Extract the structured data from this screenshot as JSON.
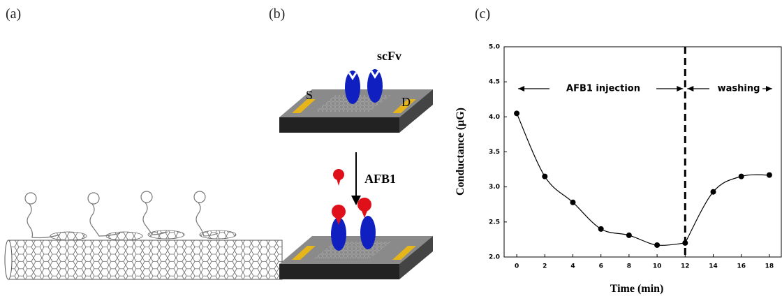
{
  "panels": {
    "a": {
      "label": "(a)"
    },
    "b": {
      "label": "(b)",
      "antibody": "scFv",
      "source": "S",
      "drain": "D",
      "analyte": "AFB1"
    },
    "c": {
      "label": "(c)"
    }
  },
  "chart_data": {
    "type": "scatter",
    "xlabel": "Time (min)",
    "ylabel": "Conductance (μG)",
    "x": [
      0,
      2,
      4,
      6,
      8,
      10,
      12,
      14,
      16,
      18
    ],
    "values": [
      4.05,
      3.15,
      2.78,
      2.4,
      2.31,
      2.17,
      2.2,
      2.93,
      3.15,
      3.17
    ],
    "color": "#000000",
    "xlim": [
      -0.9,
      18.9
    ],
    "xticks": [
      0,
      2,
      4,
      6,
      8,
      10,
      12,
      14,
      16,
      18
    ],
    "ylim": [
      2.0,
      5.0
    ],
    "yticks": [
      {
        "value": 2.0,
        "label": "2.0"
      },
      2.5,
      {
        "value": 3.0,
        "label": "3.0"
      },
      3.5,
      {
        "value": 4.0,
        "label": "4.0"
      },
      4.5,
      {
        "value": 5.0,
        "label": "5.0"
      }
    ],
    "vline": 12,
    "annotations": [
      "AFB1 injection",
      "washing"
    ]
  }
}
